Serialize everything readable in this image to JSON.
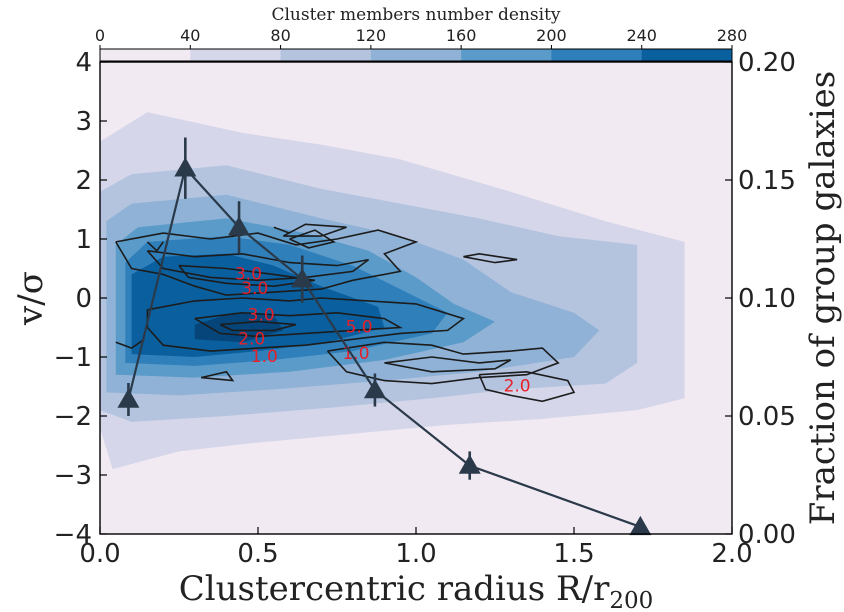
{
  "chart_data": {
    "type": "scatter",
    "colorbar": {
      "title": "Cluster members number density",
      "ticks": [
        "0",
        "40",
        "80",
        "120",
        "160",
        "200",
        "240",
        "280"
      ],
      "colors": [
        "#f1eaf2",
        "#d6d6ea",
        "#b4c4df",
        "#8fb2d6",
        "#5b9bc9",
        "#2f7fba",
        "#0a5f9e",
        "#06457a"
      ]
    },
    "xaxis": {
      "label": "Clustercentric radius R/r",
      "label_subscript": "200",
      "range": [
        0.0,
        2.0
      ],
      "ticks": [
        "0.0",
        "0.5",
        "1.0",
        "1.5",
        "2.0"
      ]
    },
    "yaxis_left": {
      "label": "v/σ",
      "range": [
        -4,
        4
      ],
      "ticks": [
        "−4",
        "−3",
        "−2",
        "−1",
        "0",
        "1",
        "2",
        "3",
        "4"
      ]
    },
    "yaxis_right": {
      "label": "Fraction of group galaxies",
      "range": [
        0.0,
        0.2
      ],
      "ticks": [
        "0.00",
        "0.05",
        "0.10",
        "0.15",
        "0.20"
      ]
    },
    "series": [
      {
        "marker": "triangle",
        "color": "#2b3a4a",
        "x": [
          0.09,
          0.27,
          0.44,
          0.64,
          0.87,
          1.17,
          1.71
        ],
        "y": [
          0.057,
          0.155,
          0.13,
          0.108,
          0.061,
          0.029,
          0.003
        ],
        "yerr": [
          0.007,
          0.013,
          0.011,
          0.01,
          0.007,
          0.006,
          0.003
        ]
      }
    ],
    "contour_labels": [
      {
        "text": "3.0",
        "x": 0.47,
        "y": 0.4
      },
      {
        "text": "3.0",
        "x": 0.49,
        "y": 0.15
      },
      {
        "text": "3.0",
        "x": 0.51,
        "y": -0.3
      },
      {
        "text": "2.0",
        "x": 0.48,
        "y": -0.7
      },
      {
        "text": "1.0",
        "x": 0.52,
        "y": -1.0
      },
      {
        "text": "5.0",
        "x": 0.82,
        "y": -0.5
      },
      {
        "text": "1.0",
        "x": 0.81,
        "y": -0.95
      },
      {
        "text": "2.0",
        "x": 1.32,
        "y": -1.5
      }
    ]
  }
}
